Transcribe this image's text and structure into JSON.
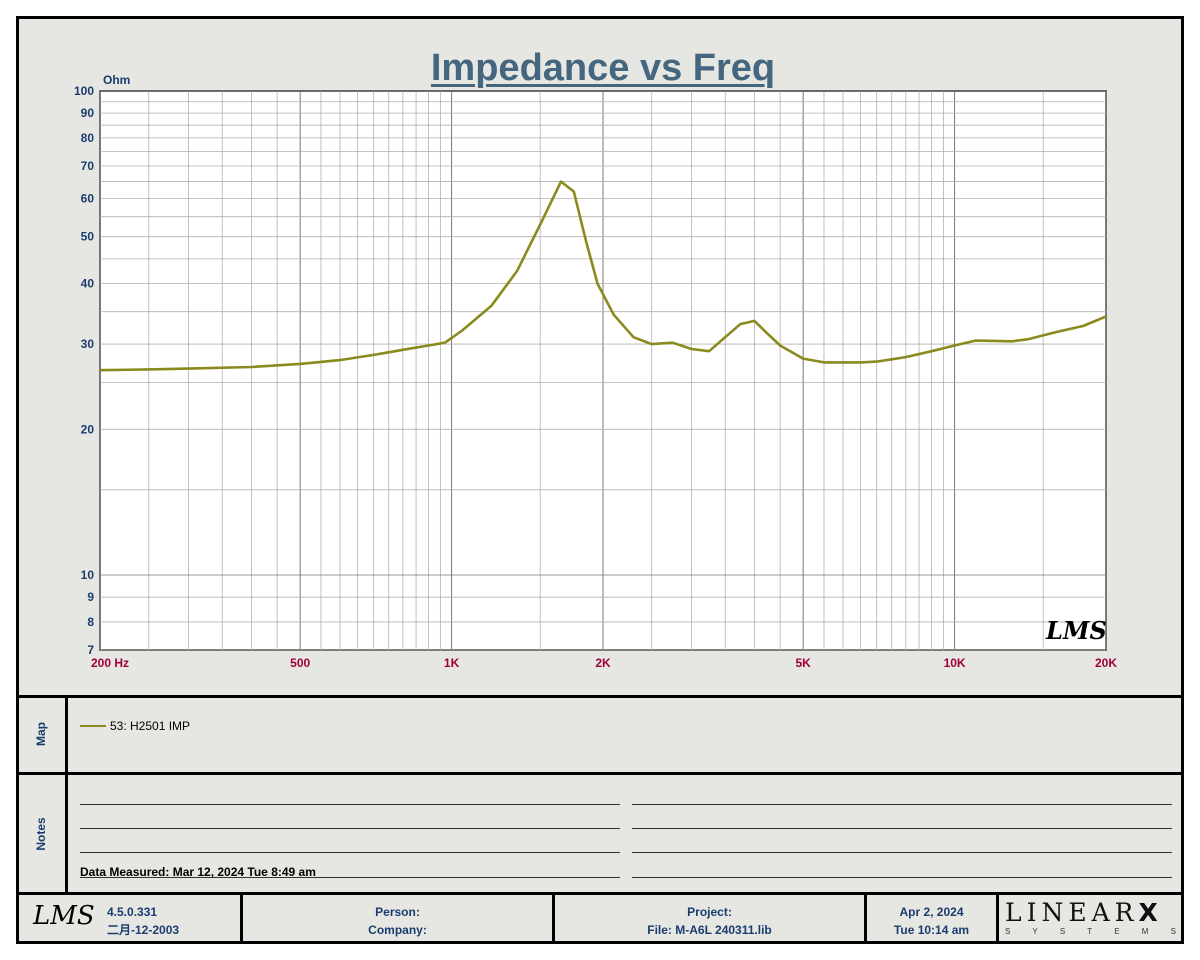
{
  "title": "Impedance vs Freq",
  "chart_data": {
    "type": "line",
    "title": "Impedance vs Freq",
    "y_unit_label": "Ohm",
    "x_scale": "log",
    "y_scale": "log",
    "xlim": [
      200,
      20000
    ],
    "ylim": [
      7,
      100
    ],
    "x_ticks": [
      {
        "value": 200,
        "label": "200  Hz"
      },
      {
        "value": 500,
        "label": "500"
      },
      {
        "value": 1000,
        "label": "1K"
      },
      {
        "value": 2000,
        "label": "2K"
      },
      {
        "value": 5000,
        "label": "5K"
      },
      {
        "value": 10000,
        "label": "10K"
      },
      {
        "value": 20000,
        "label": "20K"
      }
    ],
    "y_ticks": [
      {
        "value": 7,
        "label": "7"
      },
      {
        "value": 8,
        "label": "8"
      },
      {
        "value": 9,
        "label": "9"
      },
      {
        "value": 10,
        "label": "10"
      },
      {
        "value": 20,
        "label": "20"
      },
      {
        "value": 30,
        "label": "30"
      },
      {
        "value": 40,
        "label": "40"
      },
      {
        "value": 50,
        "label": "50"
      },
      {
        "value": 60,
        "label": "60"
      },
      {
        "value": 70,
        "label": "70"
      },
      {
        "value": 80,
        "label": "80"
      },
      {
        "value": 90,
        "label": "90"
      },
      {
        "value": 100,
        "label": "100"
      }
    ],
    "grid": true,
    "series": [
      {
        "name": "53: H2501  IMP",
        "color": "#8a8a1e",
        "x": [
          200,
          250,
          300,
          400,
          500,
          600,
          700,
          800,
          900,
          970,
          1050,
          1200,
          1350,
          1500,
          1650,
          1750,
          1850,
          1950,
          2100,
          2300,
          2500,
          2750,
          3000,
          3250,
          3500,
          3750,
          4000,
          4250,
          4500,
          5000,
          5500,
          6000,
          6500,
          7000,
          7500,
          8000,
          9000,
          10000,
          11000,
          13000,
          14000,
          16000,
          18000,
          20000
        ],
        "y": [
          26.5,
          26.6,
          26.7,
          26.9,
          27.3,
          27.8,
          28.5,
          29.2,
          29.8,
          30.2,
          32.0,
          36.0,
          42.5,
          53.0,
          65.0,
          62.0,
          49.0,
          40.0,
          34.5,
          31.0,
          30.0,
          30.2,
          29.3,
          29.0,
          31.0,
          33.0,
          33.5,
          31.5,
          29.8,
          28.0,
          27.5,
          27.5,
          27.5,
          27.6,
          27.9,
          28.2,
          29.0,
          29.8,
          30.5,
          30.4,
          30.7,
          31.8,
          32.7,
          34.2
        ]
      }
    ]
  },
  "map": {
    "label": "Map",
    "legend": [
      {
        "label": "53: H2501  IMP",
        "color": "#8a8a1e"
      }
    ]
  },
  "notes": {
    "label": "Notes",
    "measured": "Data Measured: Mar 12, 2024  Tue  8:49 am"
  },
  "footer": {
    "logo": "LMS",
    "version": "4.5.0.331",
    "build_date": "二月-12-2003",
    "person_label": "Person:",
    "company_label": "Company:",
    "project_label": "Project:",
    "file_label": "File: M-A6L   240311.lib",
    "date": "Apr  2, 2024",
    "time": "Tue 10:14 am",
    "brand": "LINEAR",
    "brand_x": "X",
    "brand_sub": "S Y S T E M S"
  },
  "watermark": "LMS"
}
